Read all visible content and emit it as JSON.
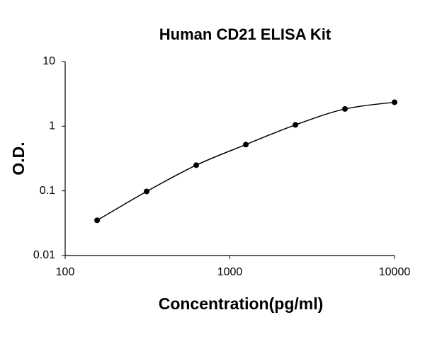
{
  "chart_data": {
    "type": "line",
    "title": "Human CD21 ELISA Kit",
    "x_label": "Concentration(pg/ml)",
    "y_label": "O.D.",
    "x": [
      156.25,
      312.5,
      625,
      1250,
      2500,
      5000,
      10000
    ],
    "series": [
      {
        "color": "#000000",
        "values": [
          0.035,
          0.098,
          0.25,
          0.52,
          1.05,
          1.85,
          2.35
        ]
      }
    ],
    "xlim": [
      100,
      10000
    ],
    "xticks": [
      100,
      1000,
      10000
    ],
    "ylim": [
      0.01,
      10
    ],
    "yticks": [
      0.01,
      0.1,
      1,
      10
    ],
    "xscale": "log",
    "yscale": "log",
    "markers": true,
    "smooth": true
  }
}
